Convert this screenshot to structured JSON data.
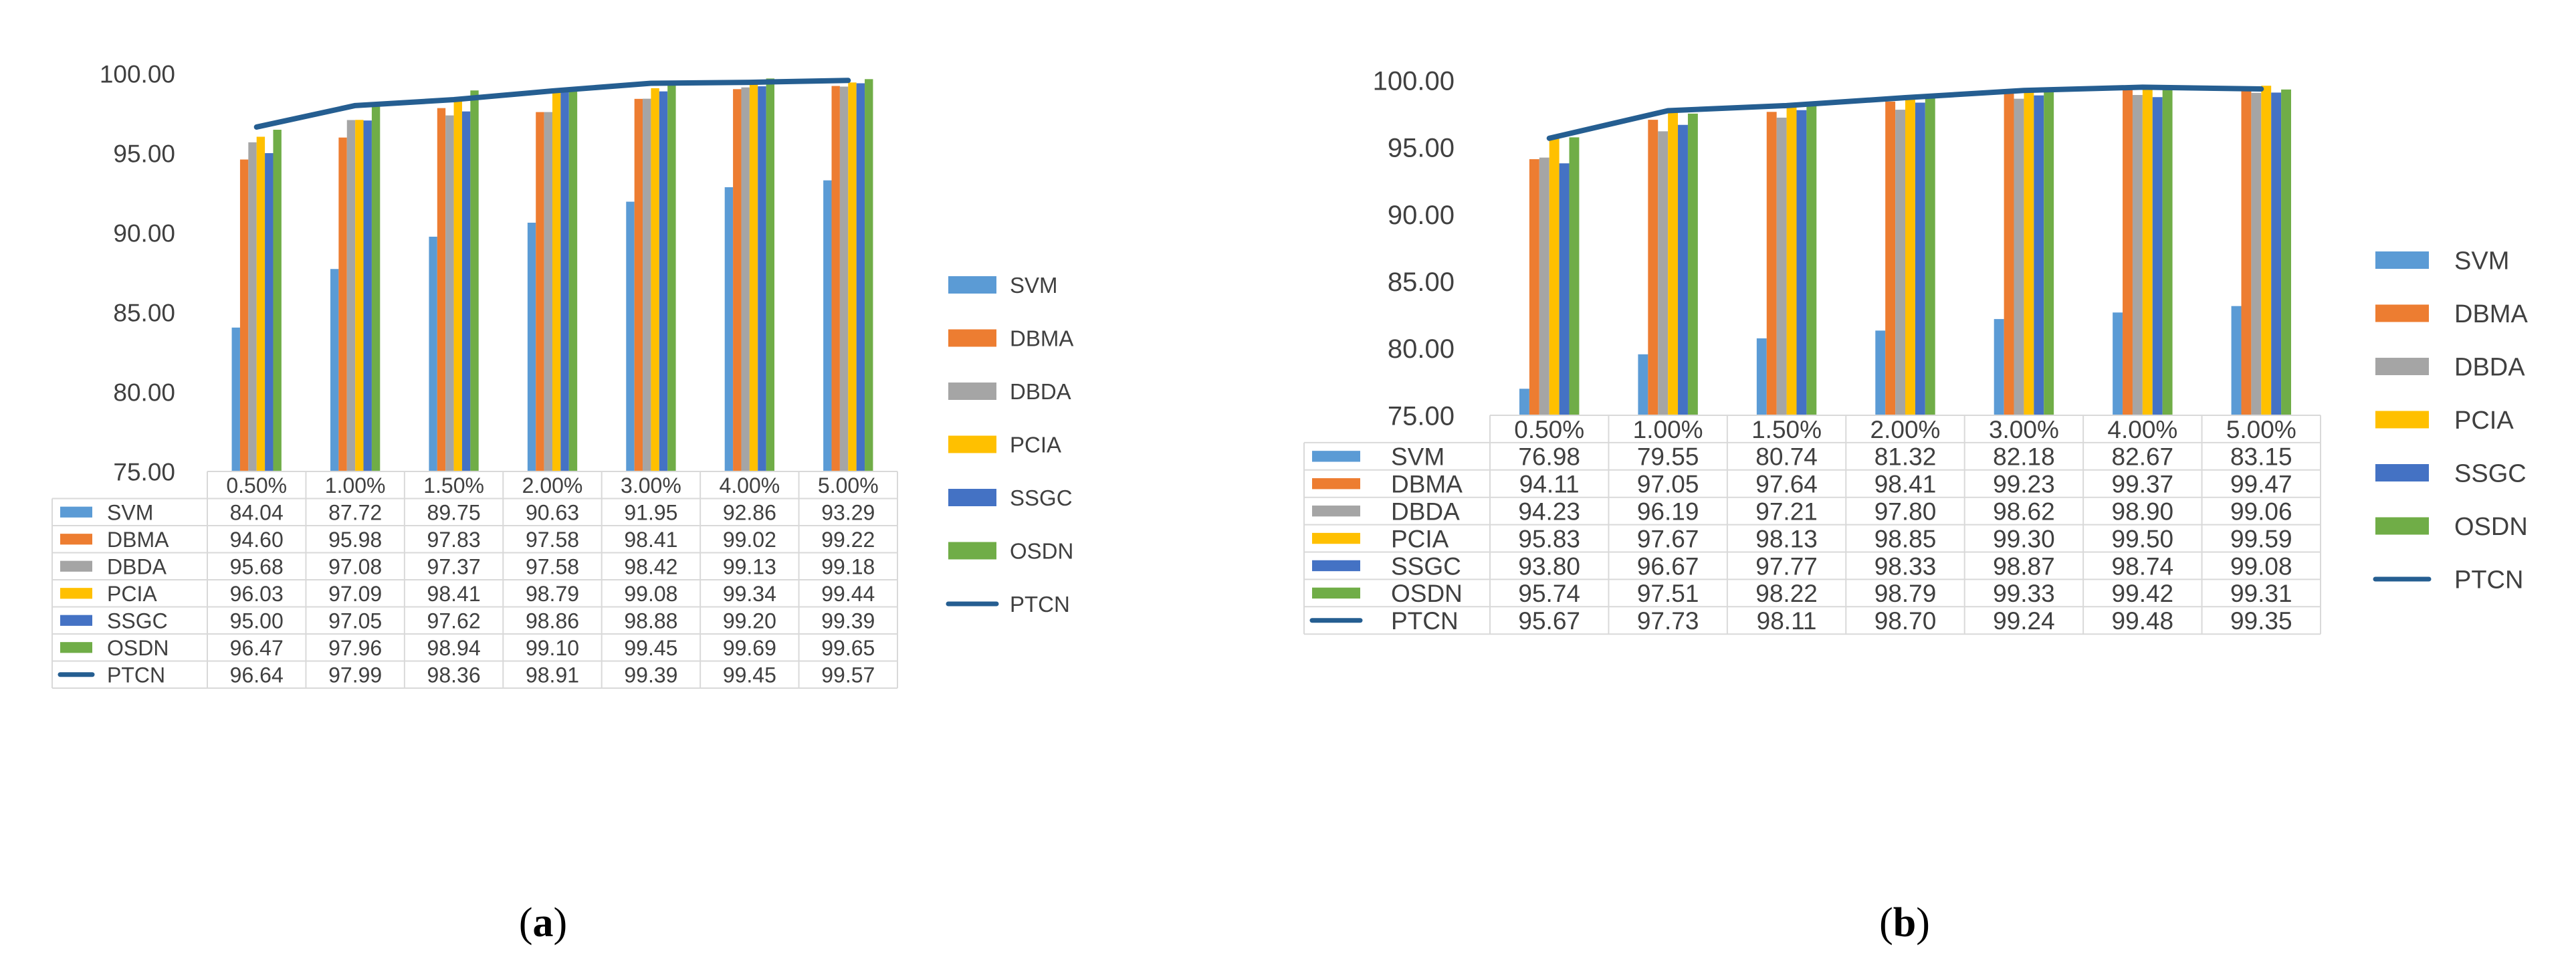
{
  "chart_data": [
    {
      "type": "bar",
      "panel_label": "(a)",
      "title": "",
      "xlabel": "",
      "ylabel": "",
      "ylim": [
        75,
        100
      ],
      "yticks": [
        "75.00",
        "80.00",
        "85.00",
        "90.00",
        "95.00",
        "100.00"
      ],
      "grid": true,
      "legend": "right",
      "data_table": true,
      "categories": [
        "0.50%",
        "1.00%",
        "1.50%",
        "2.00%",
        "3.00%",
        "4.00%",
        "5.00%"
      ],
      "series": [
        {
          "name": "SVM",
          "kind": "bar",
          "color": "#5B9BD5",
          "values": [
            84.04,
            87.72,
            89.75,
            90.63,
            91.95,
            92.86,
            93.29
          ]
        },
        {
          "name": "DBMA",
          "kind": "bar",
          "color": "#ED7D31",
          "values": [
            94.6,
            95.98,
            97.83,
            97.58,
            98.41,
            99.02,
            99.22
          ]
        },
        {
          "name": "DBDA",
          "kind": "bar",
          "color": "#A5A5A5",
          "values": [
            95.68,
            97.08,
            97.37,
            97.58,
            98.42,
            99.13,
            99.18
          ]
        },
        {
          "name": "PCIA",
          "kind": "bar",
          "color": "#FFC000",
          "values": [
            96.03,
            97.09,
            98.41,
            98.79,
            99.08,
            99.34,
            99.44
          ]
        },
        {
          "name": "SSGC",
          "kind": "bar",
          "color": "#4472C4",
          "values": [
            95.0,
            97.05,
            97.62,
            98.86,
            98.88,
            99.2,
            99.39
          ]
        },
        {
          "name": "OSDN",
          "kind": "bar",
          "color": "#70AD47",
          "values": [
            96.47,
            97.96,
            98.94,
            99.1,
            99.45,
            99.69,
            99.65
          ]
        },
        {
          "name": "PTCN",
          "kind": "line",
          "color": "#255E91",
          "values": [
            96.64,
            97.99,
            98.36,
            98.91,
            99.39,
            99.45,
            99.57
          ]
        }
      ]
    },
    {
      "type": "bar",
      "panel_label": "(b)",
      "title": "",
      "xlabel": "",
      "ylabel": "",
      "ylim": [
        75,
        100
      ],
      "yticks": [
        "75.00",
        "80.00",
        "85.00",
        "90.00",
        "95.00",
        "100.00"
      ],
      "grid": true,
      "legend": "right",
      "data_table": true,
      "categories": [
        "0.50%",
        "1.00%",
        "1.50%",
        "2.00%",
        "3.00%",
        "4.00%",
        "5.00%"
      ],
      "series": [
        {
          "name": "SVM",
          "kind": "bar",
          "color": "#5B9BD5",
          "values": [
            76.98,
            79.55,
            80.74,
            81.32,
            82.18,
            82.67,
            83.15
          ]
        },
        {
          "name": "DBMA",
          "kind": "bar",
          "color": "#ED7D31",
          "values": [
            94.11,
            97.05,
            97.64,
            98.41,
            99.23,
            99.37,
            99.47
          ]
        },
        {
          "name": "DBDA",
          "kind": "bar",
          "color": "#A5A5A5",
          "values": [
            94.23,
            96.19,
            97.21,
            97.8,
            98.62,
            98.9,
            99.06
          ]
        },
        {
          "name": "PCIA",
          "kind": "bar",
          "color": "#FFC000",
          "values": [
            95.83,
            97.67,
            98.13,
            98.85,
            99.3,
            99.5,
            99.59
          ]
        },
        {
          "name": "SSGC",
          "kind": "bar",
          "color": "#4472C4",
          "values": [
            93.8,
            96.67,
            97.77,
            98.33,
            98.87,
            98.74,
            99.08
          ]
        },
        {
          "name": "OSDN",
          "kind": "bar",
          "color": "#70AD47",
          "values": [
            95.74,
            97.51,
            98.22,
            98.79,
            99.33,
            99.42,
            99.31
          ]
        },
        {
          "name": "PTCN",
          "kind": "line",
          "color": "#255E91",
          "values": [
            95.67,
            97.73,
            98.11,
            98.7,
            99.24,
            99.48,
            99.35
          ]
        }
      ]
    }
  ]
}
